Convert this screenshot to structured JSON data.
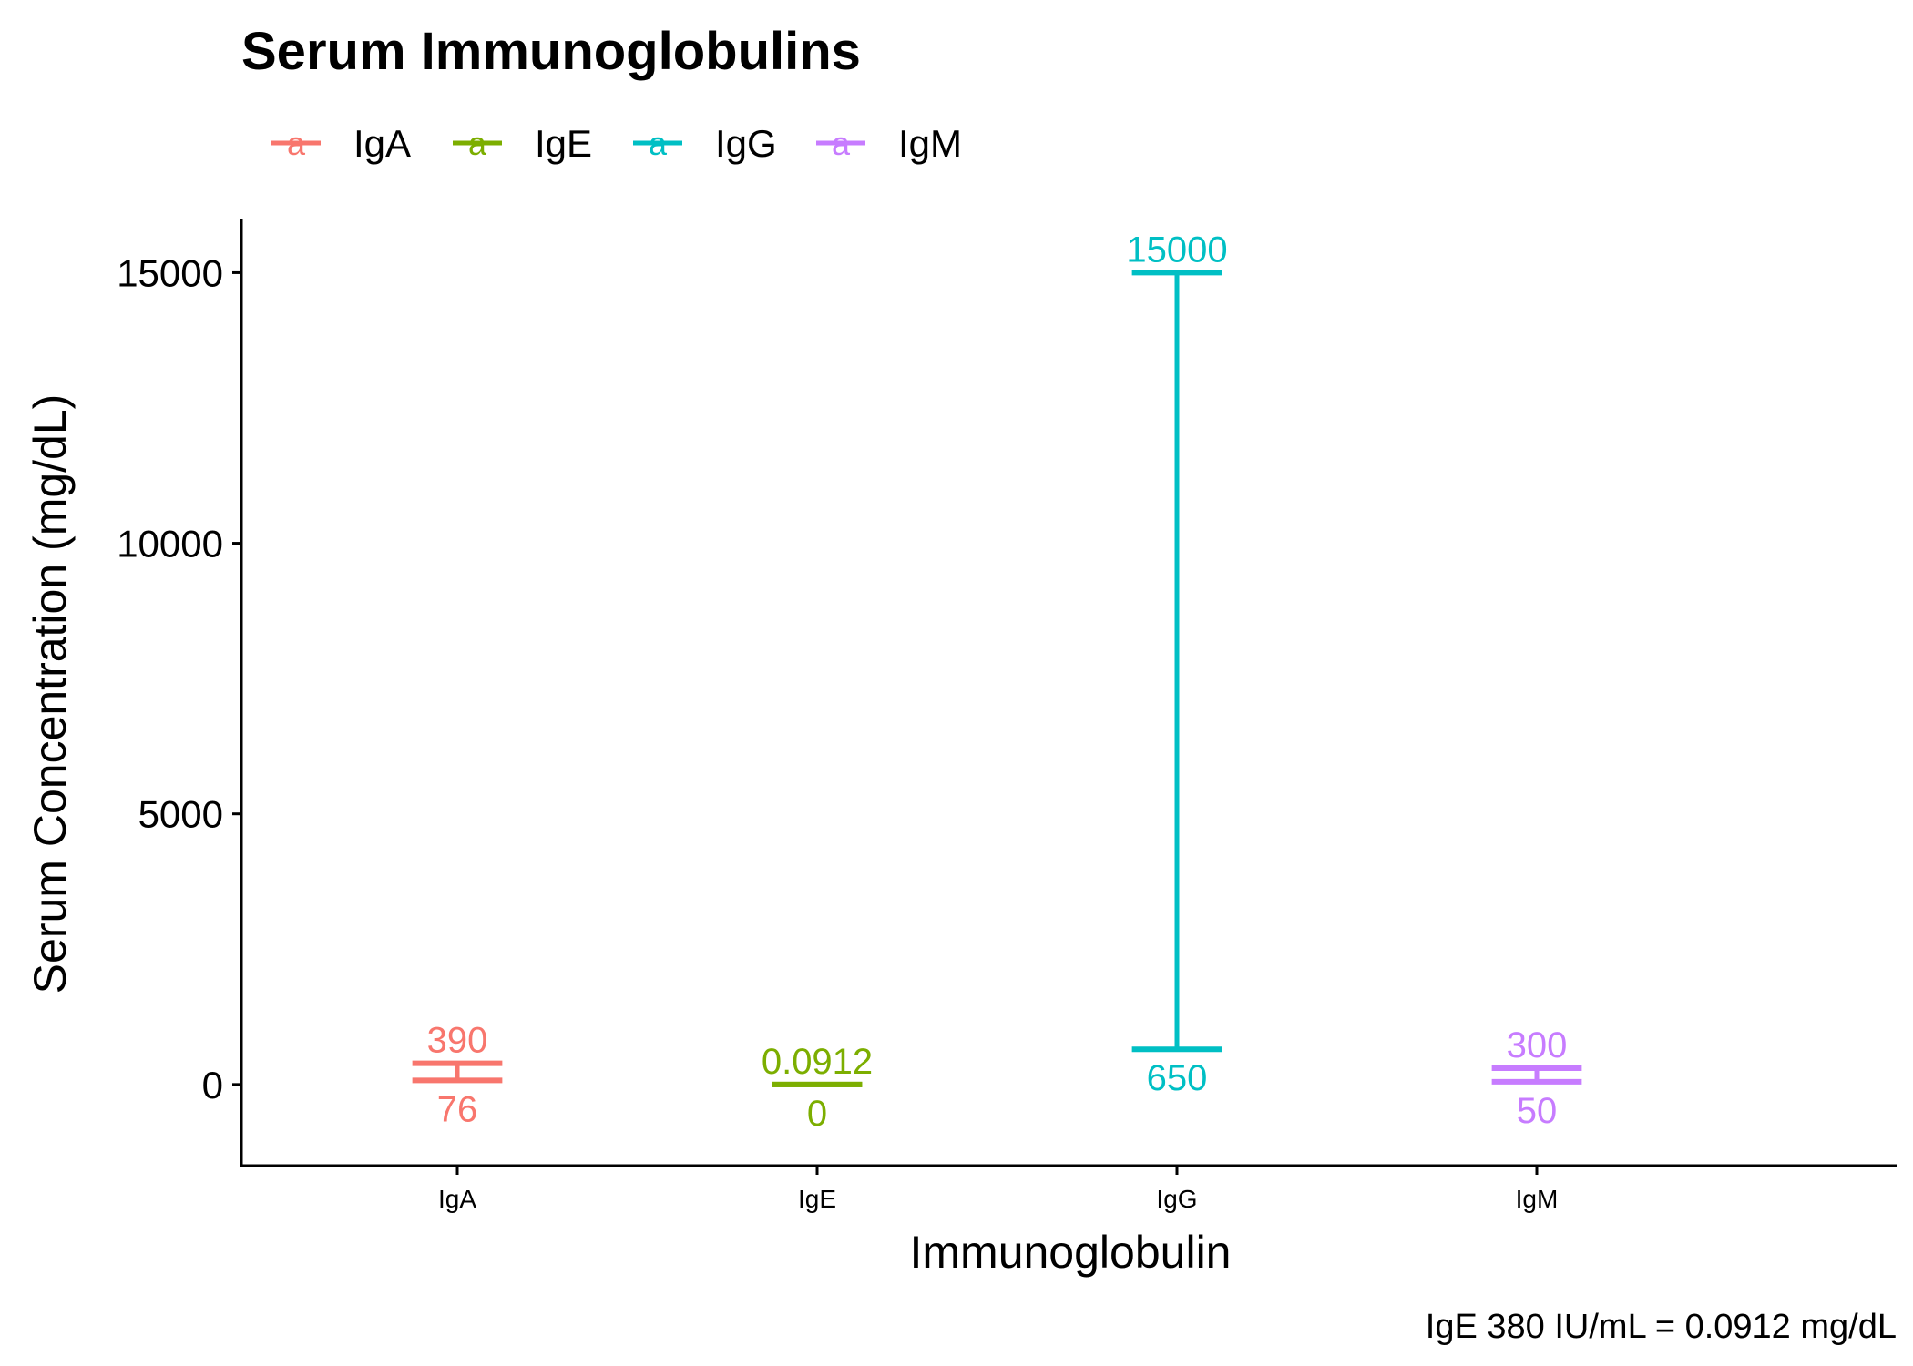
{
  "chart_data": {
    "type": "errorbar",
    "title": "Serum Immunoglobulins",
    "xlabel": "Immunoglobulin",
    "ylabel": "Serum Concentration (mg/dL)",
    "caption": "IgE 380 IU/mL = 0.0912 mg/dL",
    "legend_position": "top-left",
    "legend_key_glyph": "a",
    "ylim": [
      -1500,
      16000
    ],
    "y_ticks": [
      0,
      5000,
      10000,
      15000
    ],
    "y_tick_labels": [
      "0",
      "5000",
      "10000",
      "15000"
    ],
    "grid": false,
    "categories": [
      "IgA",
      "IgE",
      "IgG",
      "IgM"
    ],
    "series": [
      {
        "name": "IgA",
        "category": "IgA",
        "low": 76,
        "high": 390,
        "low_label": "76",
        "high_label": "390",
        "color": "#F8766D"
      },
      {
        "name": "IgE",
        "category": "IgE",
        "low": 0,
        "high": 0.0912,
        "low_label": "0",
        "high_label": "0.0912",
        "color": "#7CAE00"
      },
      {
        "name": "IgG",
        "category": "IgG",
        "low": 650,
        "high": 15000,
        "low_label": "650",
        "high_label": "15000",
        "color": "#00BFC4"
      },
      {
        "name": "IgM",
        "category": "IgM",
        "low": 50,
        "high": 300,
        "low_label": "50",
        "high_label": "300",
        "color": "#C77CFF"
      }
    ]
  }
}
